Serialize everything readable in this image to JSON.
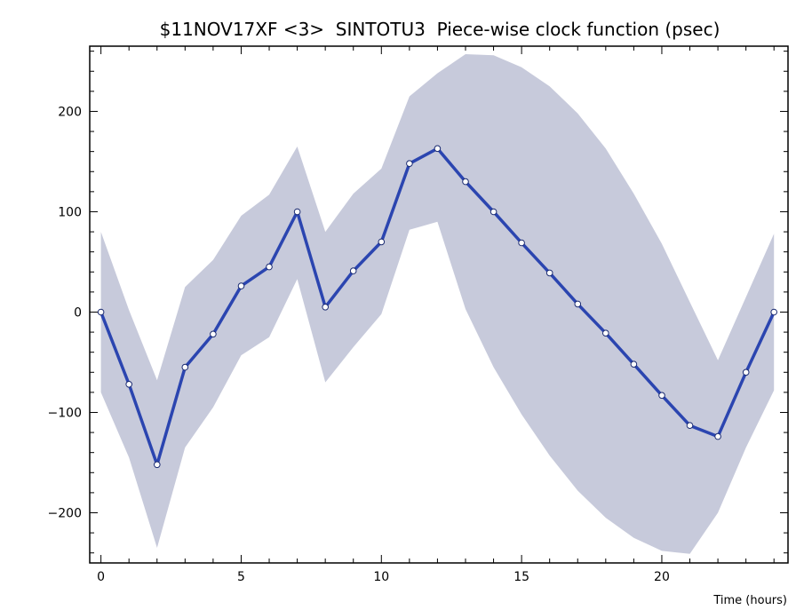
{
  "chart_data": {
    "type": "line",
    "title": "$11NOV17XF <3>  SINTOTU3  Piece-wise clock function (psec)",
    "xlabel": "Time (hours)",
    "ylabel": "",
    "xlim": [
      -0.4,
      24.5
    ],
    "ylim": [
      -250,
      265
    ],
    "x_ticks": [
      0,
      5,
      10,
      15,
      20
    ],
    "y_ticks": [
      -200,
      -100,
      0,
      100,
      200
    ],
    "x_tick_labels": [
      "0",
      "5",
      "10",
      "15",
      "20"
    ],
    "y_tick_labels": [
      "−200",
      "−100",
      "0",
      "100",
      "200"
    ],
    "grid": false,
    "legend": "none",
    "colors": {
      "line": "#2b45b0",
      "band": "#c7cadb",
      "marker_fill": "#ffffff"
    },
    "x": [
      0,
      1,
      2,
      3,
      4,
      5,
      6,
      7,
      8,
      9,
      10,
      11,
      12,
      13,
      14,
      15,
      16,
      17,
      18,
      19,
      20,
      21,
      22,
      23,
      24
    ],
    "series": [
      {
        "values": [
          0,
          -72,
          -152,
          -55,
          -22,
          26,
          45,
          100,
          5,
          41,
          70,
          148,
          163,
          130,
          100,
          69,
          39,
          8,
          -21,
          -52,
          -83,
          -113,
          -124,
          -60,
          0
        ],
        "lower": [
          -80,
          -145,
          -235,
          -135,
          -95,
          -43,
          -25,
          33,
          -70,
          -35,
          -2,
          82,
          90,
          3,
          -55,
          -102,
          -143,
          -178,
          -205,
          -225,
          -238,
          -241,
          -200,
          -135,
          -78
        ],
        "upper": [
          80,
          2,
          -68,
          25,
          52,
          96,
          117,
          165,
          80,
          118,
          143,
          215,
          238,
          257,
          256,
          244,
          225,
          198,
          163,
          118,
          68,
          10,
          -48,
          15,
          78
        ]
      }
    ]
  }
}
